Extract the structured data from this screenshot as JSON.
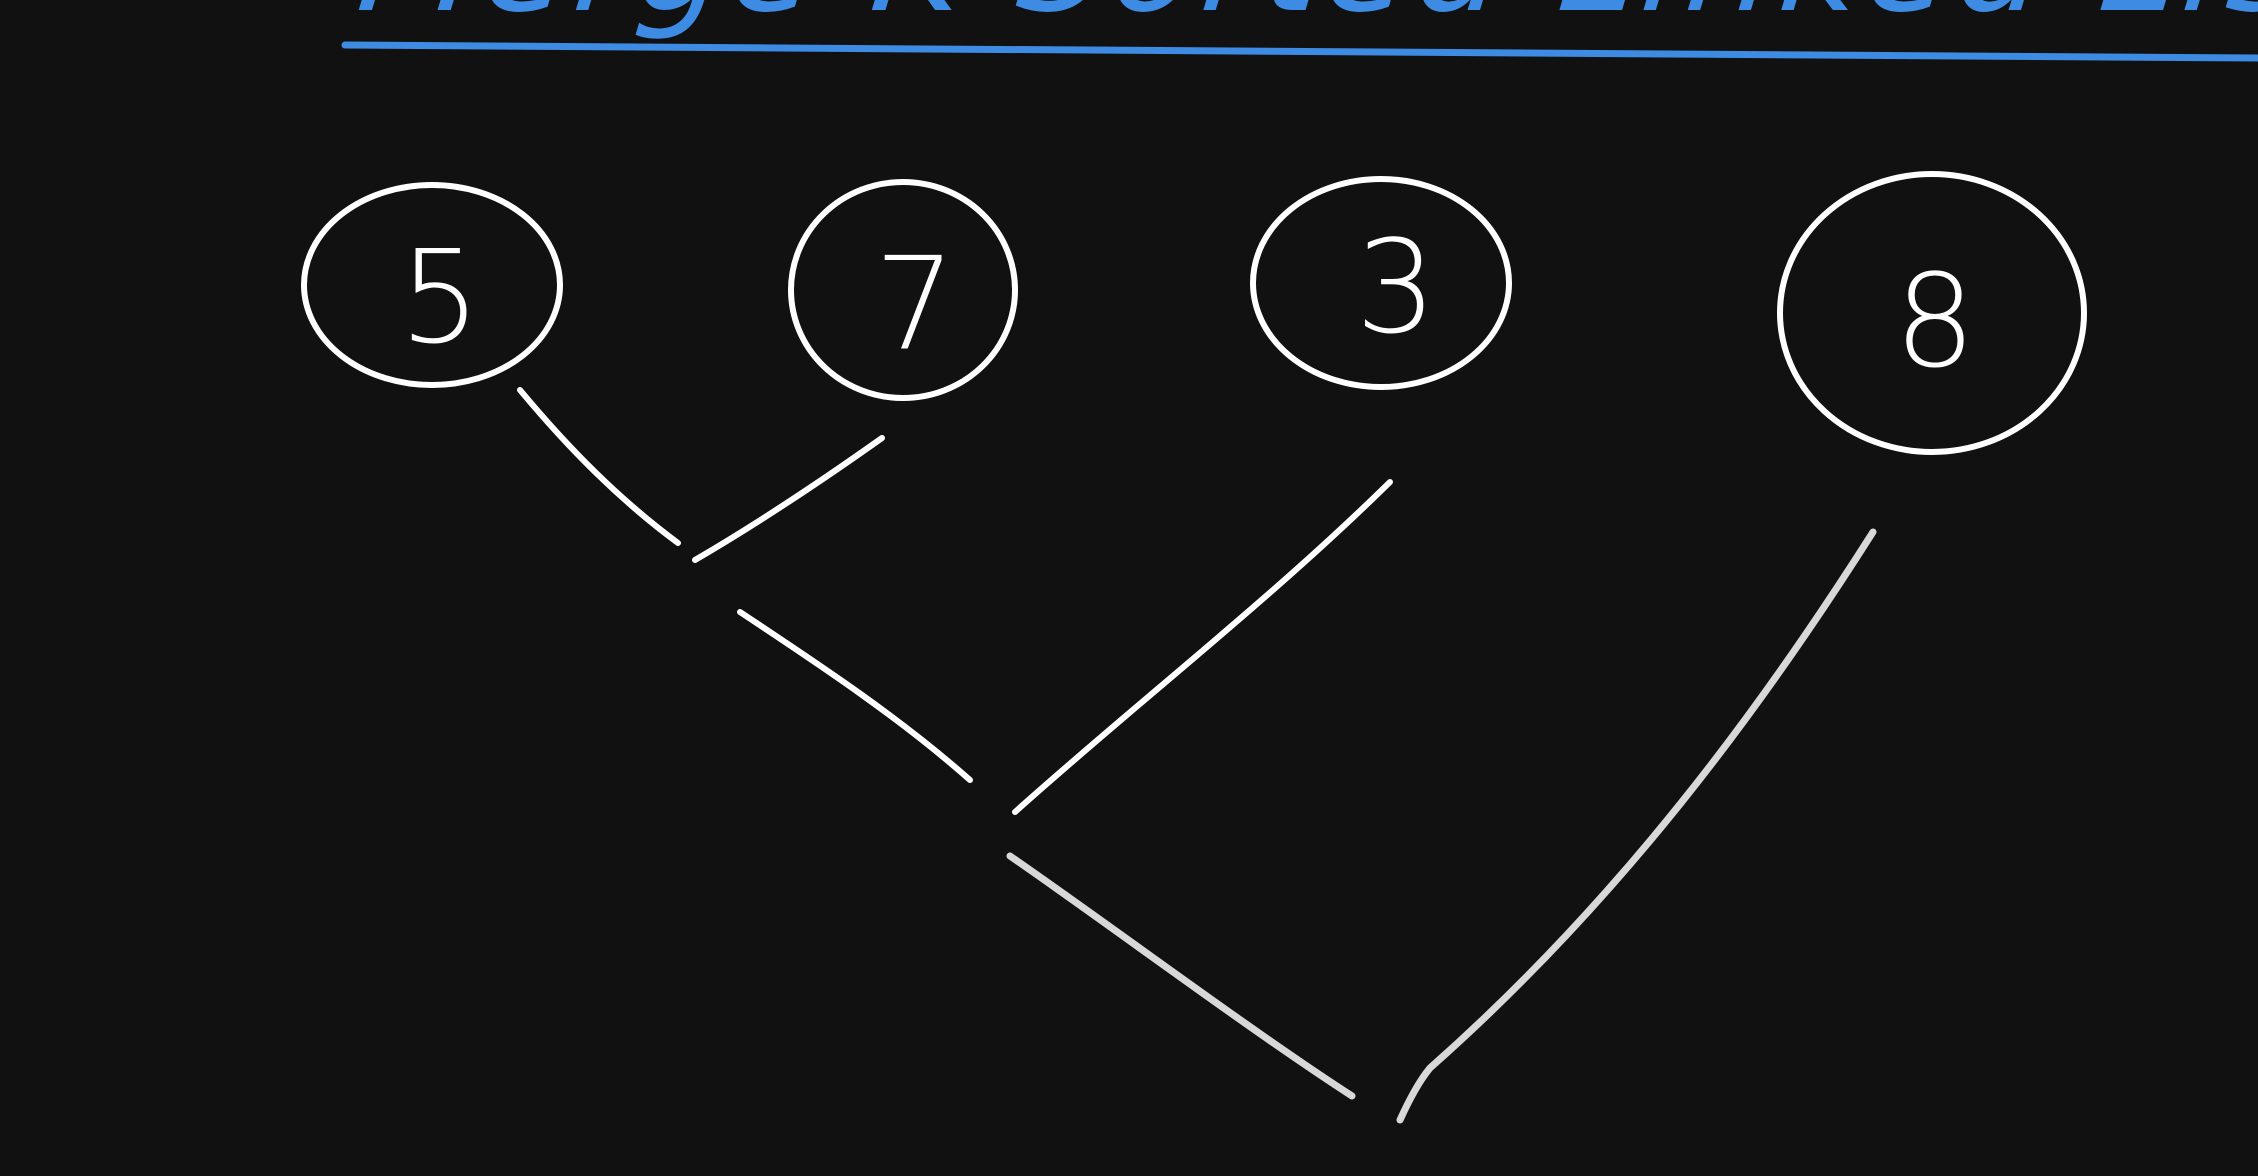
{
  "title": {
    "text": "Merge K Sorted Linked Lists",
    "color": "#3d8be3"
  },
  "nodes": [
    {
      "id": "n1",
      "label": "5"
    },
    {
      "id": "n2",
      "label": "7"
    },
    {
      "id": "n3",
      "label": "3"
    },
    {
      "id": "n4",
      "label": "8"
    }
  ],
  "colors": {
    "background": "#111111",
    "stroke": "#ffffff",
    "accent": "#3d8be3"
  }
}
